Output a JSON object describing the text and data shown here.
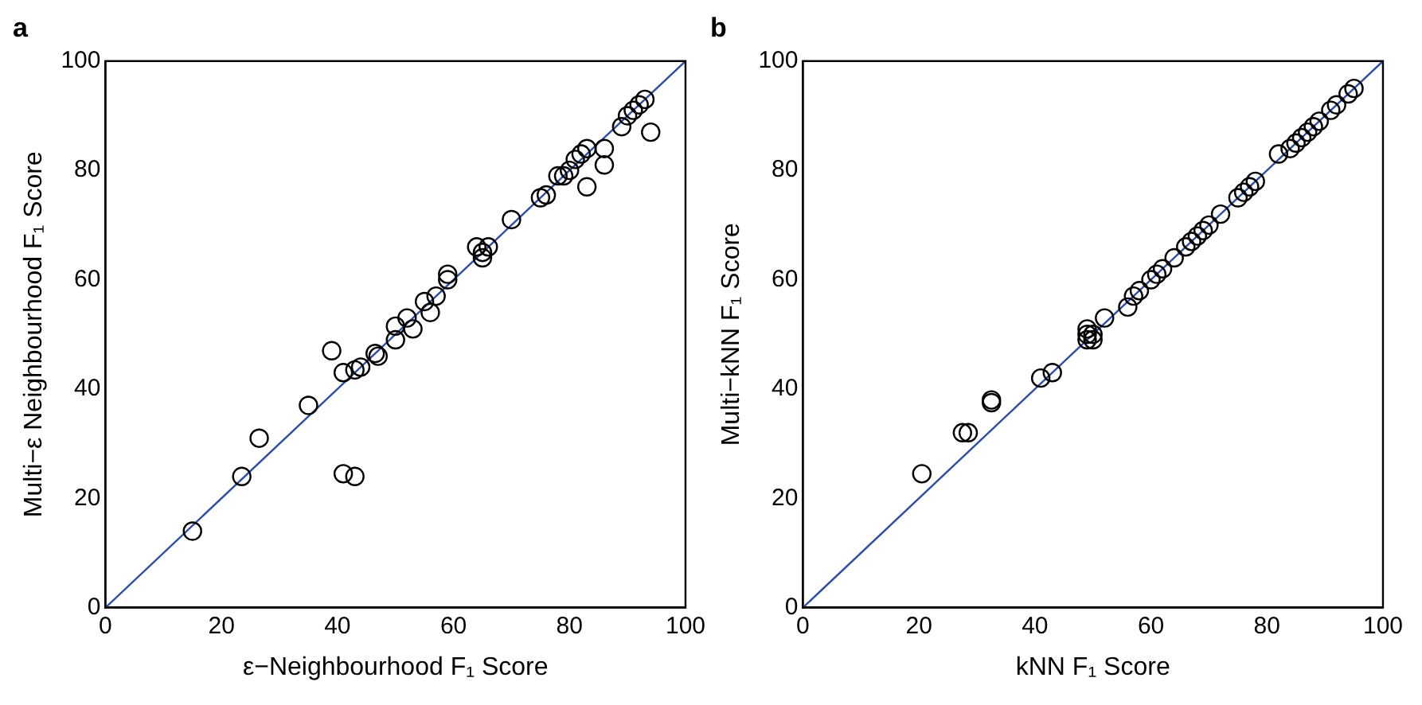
{
  "chart_data": [
    {
      "type": "scatter",
      "title": "a",
      "xlabel": "ε−Neighbourhood F₁ Score",
      "ylabel": "Multi−ε Neighbourhood F₁ Score",
      "xlim": [
        0,
        100
      ],
      "ylim": [
        0,
        100
      ],
      "xticks": [
        0,
        20,
        40,
        60,
        80,
        100
      ],
      "yticks": [
        0,
        20,
        40,
        60,
        80,
        100
      ],
      "grid": false,
      "marker": "circle",
      "series": [
        {
          "color": "#000000",
          "x": [
            15,
            23.5,
            26.5,
            35,
            39,
            41,
            41,
            43,
            43,
            44,
            46.5,
            47,
            50,
            50,
            52,
            53,
            55,
            56,
            57,
            59,
            59,
            64,
            65,
            66,
            65,
            70,
            75,
            76,
            78,
            79,
            80,
            81,
            82,
            83,
            83,
            86,
            86,
            89,
            90,
            91,
            92,
            93,
            94
          ],
          "values": [
            14,
            24,
            31,
            37,
            47,
            43,
            24.5,
            24,
            43.5,
            44,
            46.5,
            46,
            49,
            51.5,
            53,
            51,
            56,
            54,
            57,
            61,
            60,
            66,
            65,
            66,
            64,
            71,
            75,
            75.5,
            79,
            79,
            80,
            82,
            83,
            77,
            84,
            84,
            81,
            88,
            90,
            91,
            92,
            93,
            87
          ]
        },
        {
          "type": "line",
          "marker": "none",
          "color": "#2e4da3",
          "x": [
            0,
            100
          ],
          "values": [
            0,
            100
          ]
        }
      ]
    },
    {
      "type": "scatter",
      "title": "b",
      "xlabel": "kNN F₁ Score",
      "ylabel": "Multi−kNN F₁ Score",
      "xlim": [
        0,
        100
      ],
      "ylim": [
        0,
        100
      ],
      "xticks": [
        0,
        20,
        40,
        60,
        80,
        100
      ],
      "yticks": [
        0,
        20,
        40,
        60,
        80,
        100
      ],
      "grid": false,
      "marker": "circle",
      "series": [
        {
          "color": "#000000",
          "x": [
            20.5,
            27.5,
            28.5,
            32.5,
            32.5,
            41,
            43,
            49,
            49,
            50,
            49,
            50,
            52,
            56,
            57,
            58,
            60,
            61,
            62,
            64,
            66,
            67,
            68,
            69,
            70,
            72,
            75,
            76,
            77,
            78,
            82,
            84,
            85,
            86,
            87,
            88,
            89,
            91,
            92,
            94,
            95
          ],
          "values": [
            24.5,
            32,
            32,
            38,
            37.5,
            42,
            43,
            50,
            49,
            49,
            51,
            50,
            53,
            55,
            57,
            58,
            60,
            61,
            62,
            64,
            66,
            67,
            68,
            69,
            70,
            72,
            75,
            76,
            77,
            78,
            83,
            84,
            85,
            86,
            87,
            88,
            89,
            91,
            92,
            94,
            95
          ]
        },
        {
          "type": "line",
          "marker": "none",
          "color": "#2e4da3",
          "x": [
            0,
            100
          ],
          "values": [
            0,
            100
          ]
        }
      ]
    }
  ]
}
